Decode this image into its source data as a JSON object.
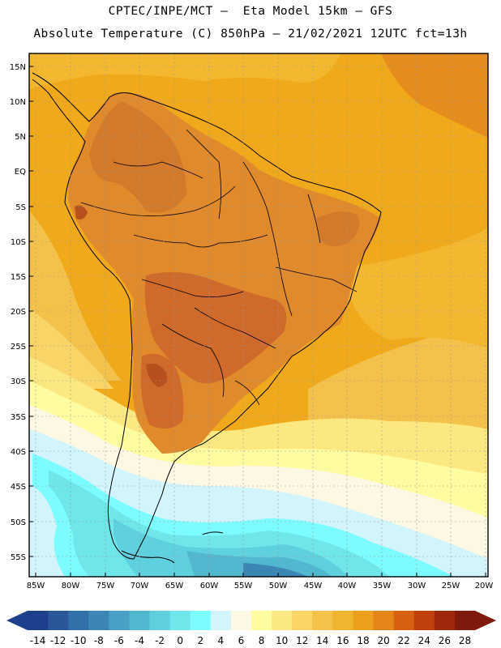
{
  "header": {
    "line1": "CPTEC/INPE/MCT –  Eta Model 15km – GFS",
    "line2": "Absolute Temperature (C) 850hPa – 21/02/2021 12UTC fct=13h"
  },
  "axes": {
    "lat_labels": [
      "15N",
      "10N",
      "5N",
      "EQ",
      "5S",
      "10S",
      "15S",
      "20S",
      "25S",
      "30S",
      "35S",
      "40S",
      "45S",
      "50S",
      "55S"
    ],
    "lon_labels": [
      "85W",
      "80W",
      "75W",
      "70W",
      "65W",
      "60W",
      "55W",
      "50W",
      "45W",
      "40W",
      "35W",
      "30W",
      "25W",
      "20W"
    ]
  },
  "colorbar": {
    "labels": [
      "-14",
      "-12",
      "-10",
      "-8",
      "-6",
      "-4",
      "-2",
      "0",
      "2",
      "4",
      "6",
      "8",
      "10",
      "12",
      "14",
      "16",
      "18",
      "20",
      "22",
      "24",
      "26",
      "28"
    ],
    "colors": [
      "#1e3f8c",
      "#2a5599",
      "#3170a8",
      "#3c86b6",
      "#4aa0c4",
      "#52b8d0",
      "#5fd0de",
      "#6ee6ea",
      "#7cfcff",
      "#d2f4fb",
      "#fdf8e4",
      "#fdfca0",
      "#fbe880",
      "#f8d566",
      "#f4c24a",
      "#f0b42e",
      "#eca01e",
      "#e68418",
      "#d86012",
      "#c0400e",
      "#a0280c",
      "#801a0c"
    ]
  },
  "legend_colors": {
    "land_hot": "#cf6a2a",
    "land_warm": "#e08a2c",
    "ocean_warm": "#f0a91a",
    "ocean_mild": "#f4c24a",
    "ocean_cool": "#fdfca0",
    "cold_south": "#52b8d0"
  }
}
